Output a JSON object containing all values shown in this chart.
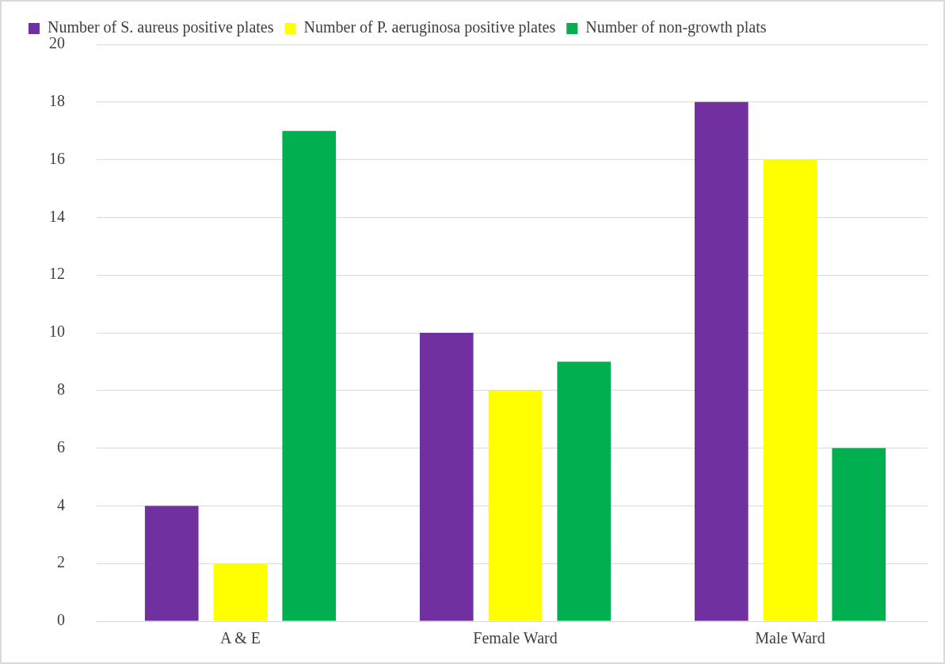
{
  "chart_data": {
    "type": "bar",
    "categories": [
      "A & E",
      "Female Ward",
      "Male Ward"
    ],
    "series": [
      {
        "name": "Number of S. aureus positive plates",
        "color": "#7030a0",
        "values": [
          4,
          10,
          18
        ]
      },
      {
        "name": "Number of P. aeruginosa positive plates",
        "color": "#ffff00",
        "values": [
          2,
          8,
          16
        ]
      },
      {
        "name": "Number of non-growth plats",
        "color": "#00b050",
        "values": [
          17,
          9,
          6
        ]
      }
    ],
    "ylim": [
      0,
      20
    ],
    "yticks": [
      0,
      2,
      4,
      6,
      8,
      10,
      12,
      14,
      16,
      18,
      20
    ],
    "grid": "y",
    "legend": "top"
  }
}
